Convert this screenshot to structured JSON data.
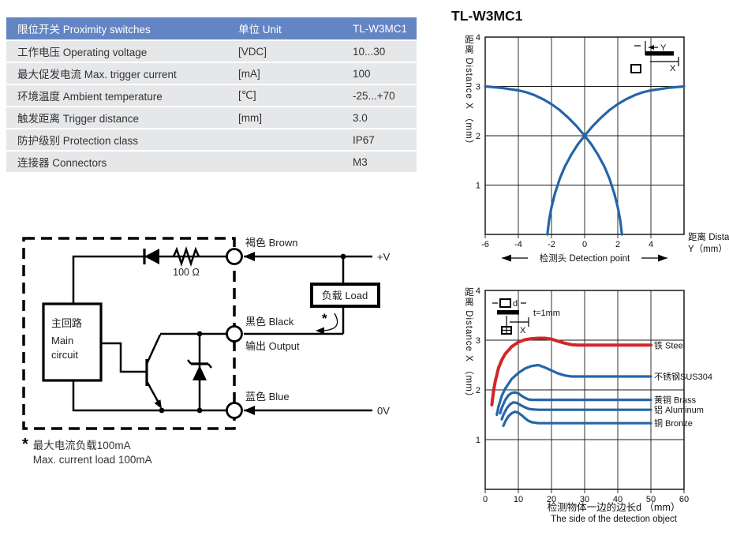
{
  "colors": {
    "table_header_bg": "#6385c3",
    "table_row_bg": "#e6e7e9",
    "curve_blue": "#2565a8",
    "curve_red": "#d22727"
  },
  "spec_table": {
    "header": {
      "col1": "限位开关 Proximity switches",
      "col2": "单位 Unit",
      "col3": "TL-W3MC1"
    },
    "rows": [
      {
        "label": "工作电压 Operating voltage",
        "unit": "[VDC]",
        "value": "10...30"
      },
      {
        "label": "最大促发电流 Max. trigger current",
        "unit": "[mA]",
        "value": "100"
      },
      {
        "label": "环境温度 Ambient temperature",
        "unit": "[℃]",
        "value": "-25...+70"
      },
      {
        "label": "触发距离 Trigger distance",
        "unit": "[mm]",
        "value": "3.0"
      },
      {
        "label": "防护级别 Protection class",
        "unit": "",
        "value": "IP67"
      },
      {
        "label": "连接器 Connectors",
        "unit": "",
        "value": "M3"
      }
    ]
  },
  "circuit": {
    "labels": {
      "main1": "主回路",
      "main2": "Main",
      "main3": "circuit",
      "resistor": "100 Ω",
      "brown": "褐色 Brown",
      "plus_v": "+V",
      "load": "负载 Load",
      "black": "黑色 Black",
      "star": "*",
      "output": "输出 Output",
      "blue": "蓝色 Blue",
      "zero_v": "0V"
    },
    "note": {
      "star": "*",
      "line1": "最大电流负载100mA",
      "line2": "Max. current load 100mA"
    }
  },
  "chart_data": [
    {
      "type": "line",
      "title": "TL-W3MC1",
      "ylabel": "距离 Distance X （mm）",
      "xlabel_line1": "距离 Distance",
      "xlabel_line2": "Y（mm）",
      "xaxis_annotation": "检测头 Detection point",
      "xlim": [
        -6,
        6
      ],
      "ylim": [
        0,
        4
      ],
      "xticks": [
        -6,
        -4,
        -2,
        0,
        2,
        4
      ],
      "yticks": [
        1,
        2,
        3,
        4
      ],
      "grid": true,
      "inset_labels": {
        "y": "Y",
        "x": "X"
      },
      "series": [
        {
          "name": "operate-curve-left",
          "color": "#2565a8",
          "width": 3.2,
          "points": [
            [
              -6,
              3
            ],
            [
              -5,
              2.97
            ],
            [
              -4,
              2.92
            ],
            [
              -3.5,
              2.88
            ],
            [
              -3,
              2.82
            ],
            [
              -2.5,
              2.74
            ],
            [
              -2,
              2.64
            ],
            [
              -1.5,
              2.52
            ],
            [
              -1,
              2.37
            ],
            [
              -0.5,
              2.2
            ],
            [
              0,
              2.0
            ],
            [
              0.4,
              1.83
            ],
            [
              0.8,
              1.62
            ],
            [
              1.2,
              1.37
            ],
            [
              1.5,
              1.13
            ],
            [
              1.8,
              0.82
            ],
            [
              2.0,
              0.55
            ],
            [
              2.15,
              0.28
            ],
            [
              2.25,
              0
            ]
          ]
        },
        {
          "name": "operate-curve-right",
          "color": "#2565a8",
          "width": 3.2,
          "points": [
            [
              -2.25,
              0
            ],
            [
              -2.15,
              0.28
            ],
            [
              -2.0,
              0.55
            ],
            [
              -1.8,
              0.82
            ],
            [
              -1.5,
              1.13
            ],
            [
              -1.2,
              1.37
            ],
            [
              -0.8,
              1.62
            ],
            [
              -0.4,
              1.83
            ],
            [
              0,
              2.0
            ],
            [
              0.5,
              2.2
            ],
            [
              1,
              2.37
            ],
            [
              1.5,
              2.52
            ],
            [
              2,
              2.64
            ],
            [
              2.5,
              2.74
            ],
            [
              3,
              2.82
            ],
            [
              3.5,
              2.88
            ],
            [
              4,
              2.92
            ],
            [
              5,
              2.97
            ],
            [
              6,
              3
            ]
          ]
        }
      ]
    },
    {
      "type": "line",
      "title": "",
      "ylabel": "距离 Distance X （mm）",
      "xlabel_line1": "检测物体一边的边长d （mm）",
      "xlabel_line2": "The side of the detection object",
      "inset_note": "t=1mm",
      "inset_labels": {
        "d": "d",
        "x": "X"
      },
      "xlim": [
        0,
        60
      ],
      "ylim": [
        0,
        4
      ],
      "xticks": [
        0,
        10,
        20,
        30,
        40,
        50,
        60
      ],
      "yticks": [
        1,
        2,
        3,
        4
      ],
      "grid": true,
      "legend_position": "right-inline",
      "series": [
        {
          "name": "铁 Steel",
          "color": "#d22727",
          "width": 4,
          "label_x": 50,
          "label_y": 2.9,
          "points": [
            [
              2,
              1.7
            ],
            [
              2.5,
              1.97
            ],
            [
              3,
              2.16
            ],
            [
              4,
              2.44
            ],
            [
              5,
              2.6
            ],
            [
              6,
              2.72
            ],
            [
              8,
              2.87
            ],
            [
              10,
              2.96
            ],
            [
              12,
              3.01
            ],
            [
              14,
              3.03
            ],
            [
              16,
              3.04
            ],
            [
              18,
              3.04
            ],
            [
              20,
              3.02
            ],
            [
              22,
              2.98
            ],
            [
              24,
              2.94
            ],
            [
              26,
              2.91
            ],
            [
              28,
              2.9
            ],
            [
              32,
              2.9
            ],
            [
              40,
              2.9
            ],
            [
              50,
              2.9
            ]
          ]
        },
        {
          "name": "不锈钢SUS304",
          "color": "#2565a8",
          "width": 3.2,
          "label_x": 50,
          "label_y": 2.27,
          "points": [
            [
              3.5,
              1.5
            ],
            [
              4,
              1.66
            ],
            [
              5,
              1.88
            ],
            [
              6,
              2.02
            ],
            [
              8,
              2.22
            ],
            [
              10,
              2.34
            ],
            [
              12,
              2.43
            ],
            [
              14,
              2.48
            ],
            [
              16,
              2.5
            ],
            [
              18,
              2.45
            ],
            [
              20,
              2.39
            ],
            [
              22,
              2.33
            ],
            [
              24,
              2.29
            ],
            [
              26,
              2.27
            ],
            [
              30,
              2.27
            ],
            [
              40,
              2.27
            ],
            [
              50,
              2.27
            ]
          ]
        },
        {
          "name": "黄铜 Brass",
          "color": "#2565a8",
          "width": 3.2,
          "label_x": 50,
          "label_y": 1.8,
          "points": [
            [
              4.5,
              1.53
            ],
            [
              5,
              1.64
            ],
            [
              6,
              1.79
            ],
            [
              7,
              1.89
            ],
            [
              8,
              1.94
            ],
            [
              9,
              1.95
            ],
            [
              10,
              1.93
            ],
            [
              11,
              1.88
            ],
            [
              12,
              1.84
            ],
            [
              13,
              1.81
            ],
            [
              14,
              1.8
            ],
            [
              20,
              1.8
            ],
            [
              30,
              1.8
            ],
            [
              40,
              1.8
            ],
            [
              50,
              1.8
            ]
          ]
        },
        {
          "name": "铝 Aluminum",
          "color": "#2565a8",
          "width": 3.2,
          "label_x": 50,
          "label_y": 1.6,
          "points": [
            [
              5,
              1.41
            ],
            [
              5.5,
              1.5
            ],
            [
              6.5,
              1.63
            ],
            [
              7.5,
              1.71
            ],
            [
              8.5,
              1.75
            ],
            [
              9.5,
              1.74
            ],
            [
              10.5,
              1.7
            ],
            [
              12,
              1.65
            ],
            [
              13,
              1.62
            ],
            [
              14,
              1.61
            ],
            [
              16,
              1.6
            ],
            [
              20,
              1.6
            ],
            [
              30,
              1.6
            ],
            [
              40,
              1.6
            ],
            [
              50,
              1.6
            ]
          ]
        },
        {
          "name": "铜 Bronze",
          "color": "#2565a8",
          "width": 3.2,
          "label_x": 50,
          "label_y": 1.33,
          "points": [
            [
              5.5,
              1.28
            ],
            [
              6,
              1.36
            ],
            [
              7,
              1.47
            ],
            [
              8,
              1.53
            ],
            [
              9,
              1.56
            ],
            [
              10,
              1.54
            ],
            [
              11,
              1.49
            ],
            [
              12,
              1.43
            ],
            [
              13,
              1.38
            ],
            [
              14,
              1.35
            ],
            [
              15,
              1.34
            ],
            [
              16,
              1.33
            ],
            [
              20,
              1.33
            ],
            [
              30,
              1.33
            ],
            [
              40,
              1.33
            ],
            [
              50,
              1.33
            ]
          ]
        }
      ]
    }
  ]
}
